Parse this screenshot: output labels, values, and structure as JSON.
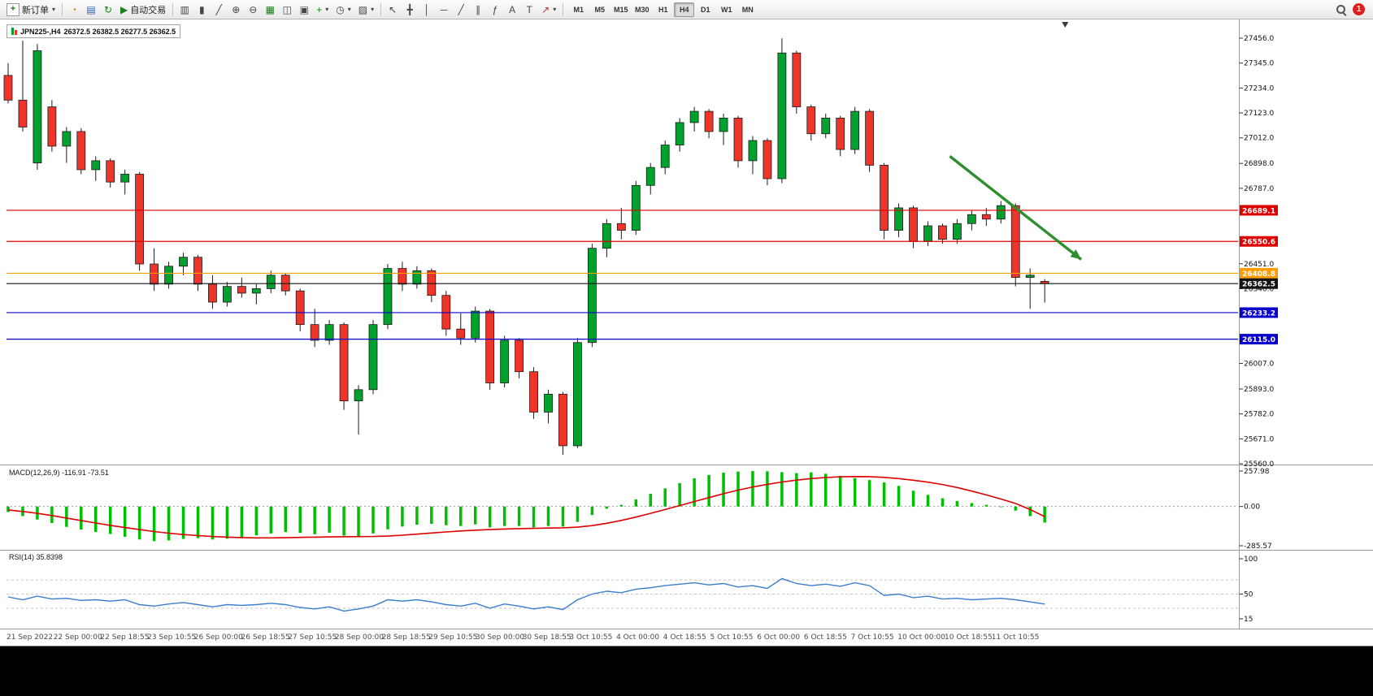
{
  "toolbar": {
    "new_order": "新订单",
    "auto_trading": "自动交易",
    "timeframes": [
      "M1",
      "M5",
      "M15",
      "M30",
      "H1",
      "H4",
      "D1",
      "W1",
      "MN"
    ],
    "active_timeframe": "H4",
    "notification_count": "1",
    "icons": {
      "caret": "▾",
      "new_order": "+",
      "profiles": "◔",
      "data_window": "▤",
      "refresh": "↻",
      "auto_play": "▶",
      "chart_bars": "▥",
      "chart_candles": "▮",
      "chart_line": "╱",
      "zoom_in": "⊕",
      "zoom_out": "⊖",
      "tile": "▦",
      "arrange": "◫",
      "cascade": "▣",
      "indicators": "+",
      "periods": "◷",
      "templates": "▨",
      "cursor": "↖",
      "crosshair": "╋",
      "vline": "│",
      "hline": "─",
      "trend": "╱",
      "channel": "∥",
      "fibo": "ƒ",
      "text": "A",
      "label": "T",
      "arrow_tool": "↗"
    }
  },
  "chart": {
    "title": "JPN225-,H4",
    "ohlc_text": "26372.5 26382.5 26277.5 26362.5"
  },
  "indicators": {
    "macd_label": "MACD(12,26,9)",
    "macd_values": "-116.91 -73.51",
    "rsi_label": "RSI(14)",
    "rsi_value": "35.8398"
  },
  "colors": {
    "bull": "#00a12c",
    "bear": "#ef342a",
    "candle_outline": "#1b1b1b",
    "macd_hist": "#00be00",
    "macd_signal": "#dd0000",
    "rsi_line": "#3b7ecc",
    "arrow_green": "#2f8f2f"
  },
  "chart_data": {
    "type": "candlestick",
    "symbol": "JPN225-",
    "timeframe": "H4",
    "last_candle": {
      "open": 26372.5,
      "high": 26382.5,
      "low": 26277.5,
      "close": 26362.5
    },
    "price_axis": {
      "min": 25560.0,
      "max": 27456.0,
      "ticks": [
        27456.0,
        27345.0,
        27234.0,
        27123.0,
        27012.0,
        26898.0,
        26787.0,
        26451.0,
        26340.0,
        26007.0,
        25893.0,
        25782.0,
        25671.0,
        25560.0
      ]
    },
    "levels": [
      {
        "price": 26689.1,
        "color": "#dd0000"
      },
      {
        "price": 26550.6,
        "color": "#dd0000"
      },
      {
        "price": 26408.8,
        "color": "#ff9c00"
      },
      {
        "price": 26362.5,
        "color": "#141414"
      },
      {
        "price": 26233.2,
        "color": "#0a00cc"
      },
      {
        "price": 26115.0,
        "color": "#0a00cc"
      }
    ],
    "time_labels": [
      "21 Sep 2022",
      "22 Sep 00:00",
      "22 Sep 18:55",
      "23 Sep 10:55",
      "26 Sep 00:00",
      "26 Sep 18:55",
      "27 Sep 10:55",
      "28 Sep 00:00",
      "28 Sep 18:55",
      "29 Sep 10:55",
      "30 Sep 00:00",
      "30 Sep 18:55",
      "3 Oct 10:55",
      "4 Oct 00:00",
      "4 Oct 18:55",
      "5 Oct 10:55",
      "6 Oct 00:00",
      "6 Oct 18:55",
      "7 Oct 10:55",
      "10 Oct 00:00",
      "10 Oct 18:55",
      "11 Oct 10:55"
    ],
    "candles": [
      [
        27290,
        27345,
        27165,
        27180
      ],
      [
        27180,
        27445,
        27040,
        27060
      ],
      [
        26900,
        27430,
        26870,
        27400
      ],
      [
        27150,
        27180,
        26950,
        26975
      ],
      [
        26975,
        27060,
        26900,
        27040
      ],
      [
        27040,
        27055,
        26850,
        26870
      ],
      [
        26870,
        26930,
        26820,
        26910
      ],
      [
        26910,
        26920,
        26790,
        26815
      ],
      [
        26815,
        26870,
        26760,
        26850
      ],
      [
        26850,
        26860,
        26420,
        26450
      ],
      [
        26450,
        26520,
        26330,
        26360
      ],
      [
        26360,
        26460,
        26340,
        26440
      ],
      [
        26440,
        26500,
        26400,
        26480
      ],
      [
        26480,
        26490,
        26330,
        26360
      ],
      [
        26360,
        26400,
        26250,
        26280
      ],
      [
        26280,
        26370,
        26260,
        26350
      ],
      [
        26350,
        26390,
        26300,
        26320
      ],
      [
        26320,
        26360,
        26270,
        26340
      ],
      [
        26340,
        26420,
        26320,
        26400
      ],
      [
        26400,
        26410,
        26310,
        26330
      ],
      [
        26330,
        26340,
        26150,
        26180
      ],
      [
        26180,
        26250,
        26080,
        26110
      ],
      [
        26110,
        26200,
        26090,
        26180
      ],
      [
        26180,
        26190,
        25800,
        25840
      ],
      [
        25840,
        25910,
        25690,
        25890
      ],
      [
        25890,
        26200,
        25870,
        26180
      ],
      [
        26180,
        26450,
        26160,
        26430
      ],
      [
        26430,
        26460,
        26330,
        26360
      ],
      [
        26360,
        26440,
        26340,
        26420
      ],
      [
        26420,
        26430,
        26280,
        26310
      ],
      [
        26310,
        26330,
        26130,
        26160
      ],
      [
        26160,
        26230,
        26090,
        26120
      ],
      [
        26120,
        26260,
        26100,
        26240
      ],
      [
        26240,
        26250,
        25890,
        25920
      ],
      [
        25920,
        26130,
        25900,
        26110
      ],
      [
        26110,
        26120,
        25940,
        25970
      ],
      [
        25970,
        25990,
        25760,
        25790
      ],
      [
        25790,
        25890,
        25740,
        25870
      ],
      [
        25870,
        25880,
        25600,
        25640
      ],
      [
        25640,
        26120,
        25630,
        26100
      ],
      [
        26100,
        26540,
        26080,
        26520
      ],
      [
        26520,
        26650,
        26480,
        26630
      ],
      [
        26630,
        26700,
        26560,
        26600
      ],
      [
        26600,
        26820,
        26580,
        26800
      ],
      [
        26800,
        26900,
        26760,
        26880
      ],
      [
        26880,
        27000,
        26850,
        26980
      ],
      [
        26980,
        27100,
        26950,
        27080
      ],
      [
        27080,
        27150,
        27040,
        27130
      ],
      [
        27130,
        27140,
        27010,
        27040
      ],
      [
        27040,
        27120,
        26980,
        27100
      ],
      [
        27100,
        27110,
        26880,
        26910
      ],
      [
        26910,
        27020,
        26850,
        27000
      ],
      [
        27000,
        27010,
        26800,
        26830
      ],
      [
        26830,
        27455,
        26810,
        27390
      ],
      [
        27390,
        27400,
        27120,
        27150
      ],
      [
        27150,
        27160,
        27000,
        27030
      ],
      [
        27030,
        27120,
        27010,
        27100
      ],
      [
        27100,
        27110,
        26930,
        26960
      ],
      [
        26960,
        27150,
        26940,
        27130
      ],
      [
        27130,
        27140,
        26860,
        26890
      ],
      [
        26890,
        26900,
        26560,
        26600
      ],
      [
        26600,
        26720,
        26570,
        26700
      ],
      [
        26700,
        26710,
        26520,
        26550
      ],
      [
        26550,
        26640,
        26530,
        26620
      ],
      [
        26620,
        26630,
        26540,
        26560
      ],
      [
        26560,
        26650,
        26540,
        26630
      ],
      [
        26630,
        26690,
        26600,
        26670
      ],
      [
        26670,
        26700,
        26620,
        26650
      ],
      [
        26650,
        26730,
        26630,
        26710
      ],
      [
        26710,
        26720,
        26350,
        26390
      ],
      [
        26390,
        26430,
        26250,
        26400
      ],
      [
        26372.5,
        26382.5,
        26277.5,
        26362.5
      ]
    ],
    "macd": {
      "name": "MACD(12,26,9)",
      "value_main": -116.91,
      "value_signal": -73.51,
      "axis_ticks": [
        257.98,
        0,
        -285.57
      ],
      "scale_max": 257.98,
      "scale_min": -285.57,
      "histogram": [
        -40,
        -70,
        -95,
        -120,
        -148,
        -168,
        -185,
        -200,
        -220,
        -240,
        -252,
        -246,
        -236,
        -230,
        -240,
        -234,
        -224,
        -210,
        -196,
        -186,
        -192,
        -202,
        -190,
        -212,
        -216,
        -196,
        -166,
        -146,
        -132,
        -126,
        -136,
        -142,
        -130,
        -152,
        -142,
        -142,
        -152,
        -142,
        -146,
        -112,
        -62,
        -16,
        12,
        52,
        92,
        132,
        170,
        205,
        230,
        246,
        254,
        258,
        256,
        250,
        243,
        248,
        238,
        222,
        206,
        192,
        175,
        150,
        115,
        85,
        60,
        40,
        25,
        12,
        -5,
        -30,
        -70,
        -116.91
      ],
      "signal": [
        -25,
        -36,
        -50,
        -66,
        -84,
        -102,
        -120,
        -137,
        -153,
        -168,
        -182,
        -194,
        -204,
        -212,
        -218,
        -223,
        -226,
        -228,
        -228,
        -227,
        -225,
        -223,
        -221,
        -220,
        -219,
        -218,
        -215,
        -209,
        -201,
        -193,
        -185,
        -178,
        -172,
        -168,
        -164,
        -161,
        -159,
        -157,
        -155,
        -150,
        -139,
        -122,
        -101,
        -77,
        -50,
        -22,
        7,
        36,
        65,
        93,
        119,
        142,
        161,
        178,
        192,
        203,
        211,
        216,
        218,
        217,
        212,
        203,
        191,
        177,
        160,
        138,
        112,
        84,
        54,
        22,
        -22,
        -73.51
      ]
    },
    "rsi": {
      "name": "RSI(14)",
      "value": 35.8398,
      "axis_ticks": [
        100,
        50,
        15
      ],
      "levels": [
        70,
        50,
        30
      ],
      "values": [
        46,
        42,
        47,
        43,
        44,
        41,
        42,
        40,
        42,
        35,
        33,
        36,
        38,
        35,
        32,
        35,
        34,
        35,
        37,
        35,
        31,
        29,
        32,
        26,
        29,
        33,
        42,
        40,
        42,
        39,
        35,
        33,
        37,
        30,
        36,
        33,
        29,
        32,
        28,
        42,
        50,
        54,
        52,
        57,
        59,
        62,
        64,
        66,
        63,
        65,
        60,
        62,
        58,
        72,
        65,
        62,
        64,
        61,
        66,
        62,
        48,
        50,
        45,
        47,
        43,
        44,
        42,
        43,
        44,
        42,
        39,
        35.84
      ]
    },
    "annotations": {
      "trend_arrow": {
        "from_index": 64.5,
        "from_price": 26930,
        "to_index": 73.5,
        "to_price": 26470,
        "color": "#2f8f2f"
      },
      "shift_marker_index": 72.4
    }
  }
}
